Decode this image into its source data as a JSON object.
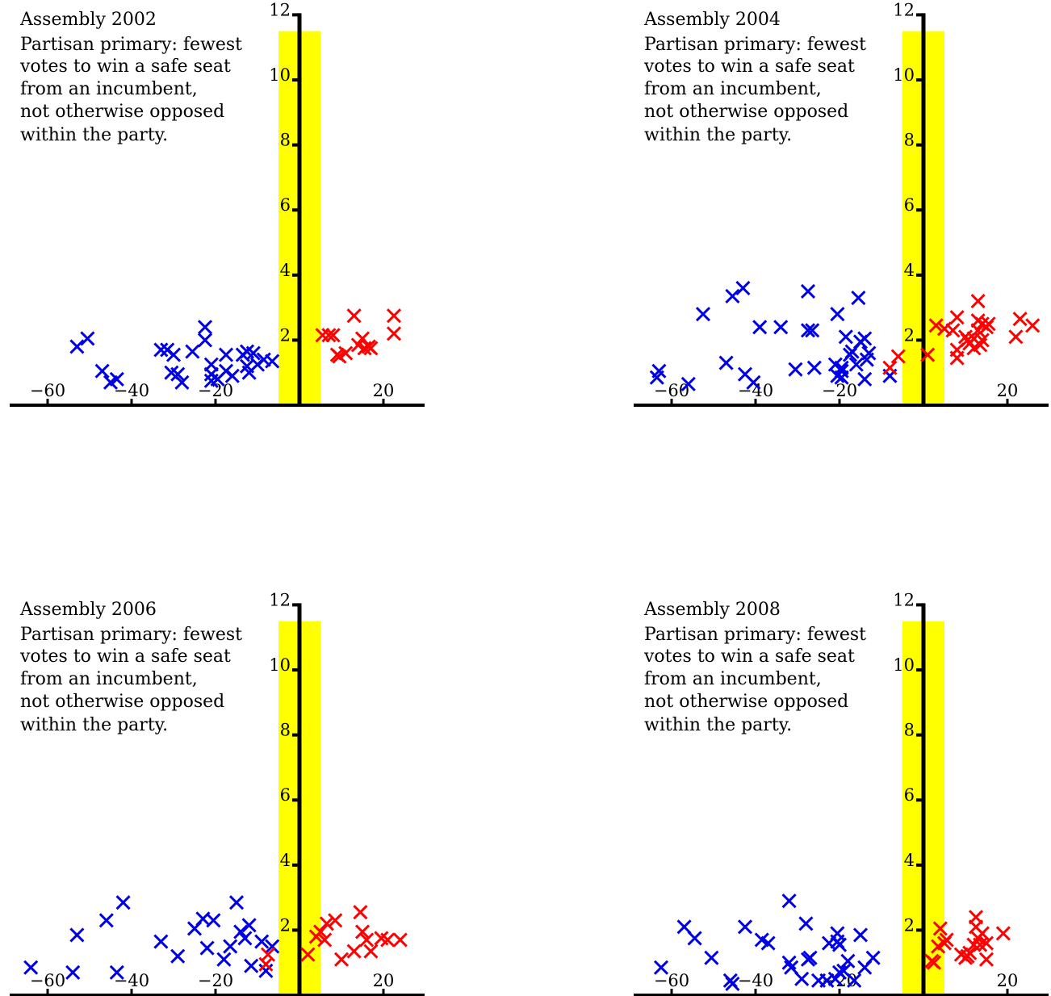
{
  "chart_data": [
    {
      "type": "scatter",
      "title_lines": [
        "Assembly 2002",
        "Partisan primary: fewest",
        "votes to win a safe seat",
        "from an incumbent,",
        "not otherwise opposed",
        "within the party."
      ],
      "xlim": [
        -70,
        30
      ],
      "ylim": [
        0,
        12
      ],
      "xticks": [
        -60,
        -40,
        -20,
        20
      ],
      "yticks": [
        2,
        4,
        6,
        8,
        10,
        12
      ],
      "band": [
        -5,
        5
      ],
      "colors": {
        "dem": "#0000e6",
        "rep": "#ff0000",
        "band": "#ffff00"
      },
      "series": [
        {
          "party": "dem",
          "points": [
            [
              -53,
              1.8
            ],
            [
              -50.5,
              2.05
            ],
            [
              -47,
              1.05
            ],
            [
              -45,
              0.7
            ],
            [
              -43.5,
              0.8
            ],
            [
              -33,
              1.7
            ],
            [
              -31.5,
              1.7
            ],
            [
              -30,
              1.55
            ],
            [
              -30.5,
              1.0
            ],
            [
              -29,
              0.95
            ],
            [
              -28,
              0.7
            ],
            [
              -25.5,
              1.65
            ],
            [
              -22.5,
              2.4
            ],
            [
              -22.5,
              2.0
            ],
            [
              -21,
              1.25
            ],
            [
              -21,
              0.95
            ],
            [
              -21,
              0.75
            ],
            [
              -19.5,
              0.8
            ],
            [
              -17.5,
              1.55
            ],
            [
              -17.5,
              1.05
            ],
            [
              -16,
              0.9
            ],
            [
              -13.5,
              1.55
            ],
            [
              -12.5,
              1.65
            ],
            [
              -12.5,
              1.2
            ],
            [
              -12,
              1.0
            ],
            [
              -11,
              1.6
            ],
            [
              -10,
              1.25
            ],
            [
              -8.5,
              1.4
            ],
            [
              -6.5,
              1.35
            ]
          ]
        },
        {
          "party": "rep",
          "points": [
            [
              5.5,
              2.15
            ],
            [
              7,
              2.15
            ],
            [
              8,
              2.15
            ],
            [
              9,
              1.55
            ],
            [
              9.5,
              1.5
            ],
            [
              11,
              1.6
            ],
            [
              13,
              2.75
            ],
            [
              14,
              1.85
            ],
            [
              15,
              2.05
            ],
            [
              15.5,
              1.75
            ],
            [
              16.5,
              1.8
            ],
            [
              17,
              1.75
            ],
            [
              22.5,
              2.75
            ],
            [
              22.5,
              2.2
            ]
          ]
        }
      ]
    },
    {
      "type": "scatter",
      "title_lines": [
        "Assembly 2004",
        "Partisan primary: fewest",
        "votes to win a safe seat",
        "from an incumbent,",
        "not otherwise opposed",
        "within the party."
      ],
      "xlim": [
        -70,
        30
      ],
      "ylim": [
        0,
        12
      ],
      "xticks": [
        -60,
        -40,
        -20,
        20
      ],
      "yticks": [
        2,
        4,
        6,
        8,
        10,
        12
      ],
      "band": [
        -5,
        5
      ],
      "colors": {
        "dem": "#0000e6",
        "rep": "#ff0000",
        "band": "#ffff00"
      },
      "series": [
        {
          "party": "dem",
          "points": [
            [
              -63.5,
              0.85
            ],
            [
              -63,
              1.05
            ],
            [
              -56,
              0.65
            ],
            [
              -52.5,
              2.8
            ],
            [
              -47,
              1.3
            ],
            [
              -45.5,
              3.35
            ],
            [
              -43,
              3.6
            ],
            [
              -42.5,
              0.95
            ],
            [
              -40.5,
              0.7
            ],
            [
              -39,
              2.4
            ],
            [
              -34,
              2.4
            ],
            [
              -30.5,
              1.1
            ],
            [
              -27.5,
              3.5
            ],
            [
              -27.5,
              2.3
            ],
            [
              -26.5,
              2.3
            ],
            [
              -26,
              1.15
            ],
            [
              -21,
              1.25
            ],
            [
              -20.5,
              2.8
            ],
            [
              -20.5,
              0.9
            ],
            [
              -19.5,
              0.85
            ],
            [
              -19.5,
              1.05
            ],
            [
              -19.5,
              1.15
            ],
            [
              -18.5,
              2.1
            ],
            [
              -17.5,
              1.55
            ],
            [
              -17,
              1.65
            ],
            [
              -16,
              1.25
            ],
            [
              -15.5,
              3.3
            ],
            [
              -15,
              1.95
            ],
            [
              -14,
              2.05
            ],
            [
              -14,
              0.8
            ],
            [
              -13.5,
              1.4
            ],
            [
              -13,
              1.6
            ],
            [
              -8,
              0.9
            ]
          ]
        },
        {
          "party": "rep",
          "points": [
            [
              -8,
              1.15
            ],
            [
              -6,
              1.5
            ],
            [
              1,
              1.55
            ],
            [
              3,
              2.45
            ],
            [
              5,
              2.35
            ],
            [
              7,
              2.3
            ],
            [
              8,
              2.7
            ],
            [
              8,
              1.7
            ],
            [
              8,
              1.45
            ],
            [
              10,
              2.1
            ],
            [
              10.5,
              2.0
            ],
            [
              11,
              1.9
            ],
            [
              12,
              2.05
            ],
            [
              12,
              1.75
            ],
            [
              13,
              3.2
            ],
            [
              13,
              2.6
            ],
            [
              13,
              2.3
            ],
            [
              13.5,
              1.85
            ],
            [
              14,
              2.0
            ],
            [
              14,
              2.5
            ],
            [
              15,
              2.4
            ],
            [
              15.5,
              2.5
            ],
            [
              22,
              2.1
            ],
            [
              23,
              2.65
            ],
            [
              26,
              2.45
            ]
          ]
        }
      ]
    },
    {
      "type": "scatter",
      "title_lines": [
        "Assembly 2006",
        "Partisan primary: fewest",
        "votes to win a safe seat",
        "from an incumbent,",
        "not otherwise opposed",
        "within the party."
      ],
      "xlim": [
        -70,
        30
      ],
      "ylim": [
        0,
        12
      ],
      "xticks": [
        -60,
        -40,
        -20,
        20
      ],
      "yticks": [
        2,
        4,
        6,
        8,
        10,
        12
      ],
      "band": [
        -5,
        5
      ],
      "colors": {
        "dem": "#0000e6",
        "rep": "#ff0000",
        "band": "#ffff00"
      },
      "series": [
        {
          "party": "dem",
          "points": [
            [
              -64,
              0.85
            ],
            [
              -54,
              0.7
            ],
            [
              -53,
              1.85
            ],
            [
              -46,
              2.3
            ],
            [
              -43.5,
              0.7
            ],
            [
              -42,
              2.85
            ],
            [
              -33,
              1.65
            ],
            [
              -29,
              1.2
            ],
            [
              -25,
              2.05
            ],
            [
              -23,
              2.35
            ],
            [
              -22,
              1.45
            ],
            [
              -20.5,
              2.3
            ],
            [
              -18,
              1.1
            ],
            [
              -16.5,
              1.5
            ],
            [
              -15,
              2.85
            ],
            [
              -14,
              1.95
            ],
            [
              -13,
              1.75
            ],
            [
              -12,
              2.15
            ],
            [
              -11.5,
              0.9
            ],
            [
              -9,
              1.65
            ],
            [
              -8,
              0.75
            ],
            [
              -6.5,
              1.5
            ]
          ]
        },
        {
          "party": "rep",
          "points": [
            [
              -8,
              0.95
            ],
            [
              -7.5,
              1.25
            ],
            [
              2,
              1.25
            ],
            [
              4,
              1.8
            ],
            [
              5,
              1.95
            ],
            [
              6,
              1.7
            ],
            [
              6.5,
              2.2
            ],
            [
              8.5,
              2.3
            ],
            [
              10,
              1.1
            ],
            [
              13,
              1.35
            ],
            [
              14.5,
              2.55
            ],
            [
              15,
              1.95
            ],
            [
              16,
              1.7
            ],
            [
              17,
              1.35
            ],
            [
              19.5,
              1.75
            ],
            [
              21,
              1.7
            ],
            [
              24,
              1.7
            ]
          ]
        }
      ]
    },
    {
      "type": "scatter",
      "title_lines": [
        "Assembly 2008",
        "Partisan primary: fewest",
        "votes to win a safe seat",
        "from an incumbent,",
        "not otherwise opposed",
        "within the party."
      ],
      "xlim": [
        -70,
        30
      ],
      "ylim": [
        0,
        12
      ],
      "xticks": [
        -60,
        -40,
        -20,
        20
      ],
      "yticks": [
        2,
        4,
        6,
        8,
        10,
        12
      ],
      "band": [
        -5,
        5
      ],
      "colors": {
        "dem": "#0000e6",
        "rep": "#ff0000",
        "band": "#ffff00"
      },
      "series": [
        {
          "party": "dem",
          "points": [
            [
              -62.5,
              0.85
            ],
            [
              -57,
              2.1
            ],
            [
              -54.5,
              1.75
            ],
            [
              -50.5,
              1.15
            ],
            [
              -46,
              0.45
            ],
            [
              -45.5,
              0.35
            ],
            [
              -42.5,
              2.1
            ],
            [
              -38.5,
              1.7
            ],
            [
              -37,
              1.6
            ],
            [
              -32,
              2.9
            ],
            [
              -32,
              1.0
            ],
            [
              -31.5,
              0.85
            ],
            [
              -29,
              0.5
            ],
            [
              -28,
              2.2
            ],
            [
              -27.5,
              1.1
            ],
            [
              -27,
              1.15
            ],
            [
              -25,
              0.45
            ],
            [
              -23,
              0.45
            ],
            [
              -22.5,
              1.6
            ],
            [
              -21,
              0.5
            ],
            [
              -20.5,
              1.65
            ],
            [
              -20.5,
              1.9
            ],
            [
              -20,
              1.55
            ],
            [
              -20,
              0.7
            ],
            [
              -19,
              0.75
            ],
            [
              -18,
              1.05
            ],
            [
              -16.5,
              0.45
            ],
            [
              -15,
              1.85
            ],
            [
              -14,
              0.85
            ],
            [
              -12,
              1.15
            ]
          ]
        },
        {
          "party": "rep",
          "points": [
            [
              2,
              1.05
            ],
            [
              2.5,
              1.0
            ],
            [
              3.5,
              1.5
            ],
            [
              4,
              2.05
            ],
            [
              5,
              1.6
            ],
            [
              5.5,
              1.7
            ],
            [
              9,
              1.25
            ],
            [
              10,
              1.15
            ],
            [
              10.5,
              1.2
            ],
            [
              11,
              1.3
            ],
            [
              12,
              1.55
            ],
            [
              12.5,
              2.4
            ],
            [
              12.5,
              2.1
            ],
            [
              13,
              1.75
            ],
            [
              13.5,
              1.55
            ],
            [
              14,
              1.9
            ],
            [
              15,
              1.6
            ],
            [
              15,
              1.1
            ],
            [
              19,
              1.9
            ]
          ]
        }
      ]
    }
  ]
}
